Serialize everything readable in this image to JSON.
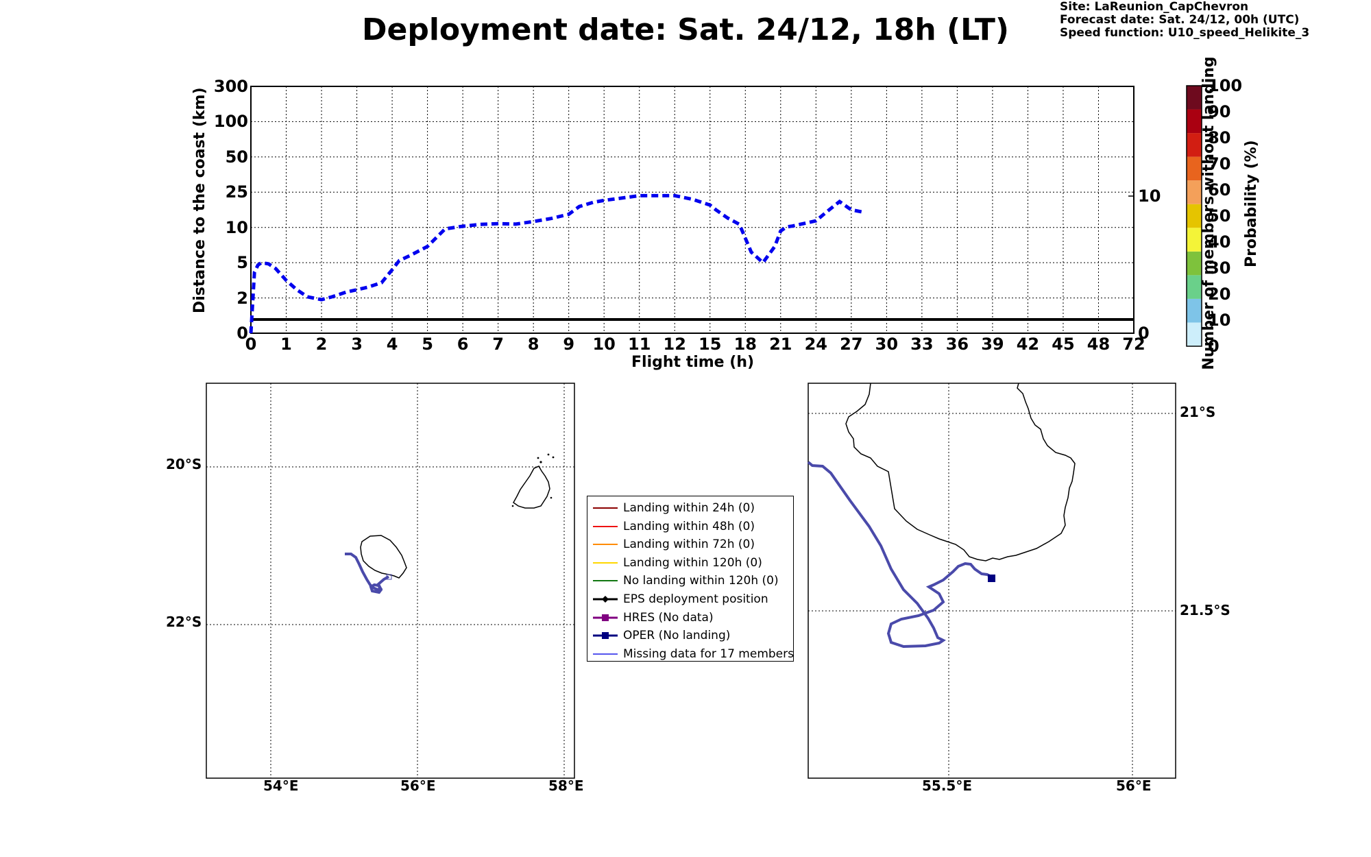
{
  "title": "Deployment date: Sat. 24/12, 18h (LT)",
  "site_info": [
    "Site: LaReunion_CapChevron",
    "Forecast date: Sat. 24/12, 00h (UTC)",
    "Speed function: U10_speed_Helikite_3"
  ],
  "chart_data": [
    {
      "type": "line",
      "title": "",
      "xlabel": "Flight time (h)",
      "ylabel": "Distance to the coast (km)",
      "ylabel_right": "Number of members without landing",
      "x_ticks": [
        "0",
        "1",
        "2",
        "3",
        "4",
        "5",
        "6",
        "7",
        "8",
        "9",
        "10",
        "11",
        "12",
        "15",
        "18",
        "21",
        "24",
        "27",
        "30",
        "33",
        "36",
        "39",
        "42",
        "45",
        "48",
        "72"
      ],
      "y_ticks": [
        "0",
        "2",
        "5",
        "10",
        "25",
        "50",
        "100",
        "300"
      ],
      "y_right_ticks": [
        "0",
        "10"
      ],
      "grid": true,
      "series": [
        {
          "name": "",
          "style": "dashed",
          "color": "#0000ee",
          "x": [
            0,
            0.1,
            0.2,
            0.3,
            0.5,
            0.7,
            1,
            1.3,
            1.6,
            2,
            2.3,
            2.7,
            3,
            3.3,
            3.7,
            4,
            4.2,
            4.5,
            5,
            5.5,
            6,
            6.5,
            7,
            7.5,
            8,
            8.5,
            9,
            9.3,
            9.7,
            10,
            10.5,
            11,
            11.5,
            12,
            13.5,
            15,
            15.5,
            16.5,
            17.5,
            18.5,
            19.5,
            20.5,
            21,
            21.5,
            22,
            23,
            24,
            25,
            26,
            27,
            28
          ],
          "y": [
            0,
            4.2,
            4.8,
            5.0,
            4.9,
            4.5,
            3.5,
            2.7,
            2.1,
            1.9,
            2.1,
            2.5,
            2.7,
            2.9,
            3.3,
            4.4,
            5.3,
            6.0,
            7.3,
            9.8,
            10.5,
            11.3,
            11.6,
            11.4,
            12.5,
            13.8,
            15.6,
            18.9,
            20.7,
            21.5,
            22.5,
            23.5,
            23.5,
            23.5,
            22,
            19.5,
            17.5,
            14,
            11.3,
            6.5,
            5.0,
            7.3,
            9.5,
            10.2,
            10.6,
            11.7,
            12.8,
            17,
            21,
            17.5,
            16.5
          ]
        },
        {
          "name": "",
          "style": "solid",
          "color": "#000000",
          "x": [
            0,
            72
          ],
          "y_right": [
            1,
            1
          ]
        }
      ]
    },
    {
      "type": "colorbar",
      "label": "Probability (%)",
      "ticks": [
        "0",
        "10",
        "20",
        "30",
        "40",
        "50",
        "60",
        "70",
        "80",
        "90",
        "100"
      ],
      "colors": [
        "#cdeefb",
        "#7ec4e8",
        "#6ad08a",
        "#7ec23c",
        "#f4f438",
        "#e5c400",
        "#f4a05a",
        "#e8641e",
        "#d21e12",
        "#aa0011",
        "#6e0a1e"
      ]
    }
  ],
  "legend": [
    {
      "label": "Landing within 24h (0)",
      "color": "#8b0000",
      "marker": "none"
    },
    {
      "label": "Landing within 48h (0)",
      "color": "#ee1111",
      "marker": "none"
    },
    {
      "label": "Landing within 72h (0)",
      "color": "#ff8c00",
      "marker": "none"
    },
    {
      "label": "Landing within 120h (0)",
      "color": "#ffd700",
      "marker": "none"
    },
    {
      "label": "No landing within 120h (0)",
      "color": "#117711",
      "marker": "none"
    },
    {
      "label": "EPS deployment position",
      "color": "#000000",
      "marker": "diamond"
    },
    {
      "label": "HRES (No data)",
      "color": "#800080",
      "marker": "square"
    },
    {
      "label": "OPER (No landing)",
      "color": "#000080",
      "marker": "square"
    },
    {
      "label": "Missing data for 17 members",
      "color": "#5555ee",
      "marker": "none"
    }
  ],
  "map_left": {
    "lon_ticks": [
      "54°E",
      "56°E",
      "58°E"
    ],
    "lat_ticks": [
      "20°S",
      "22°S"
    ]
  },
  "map_right": {
    "lon_ticks": [
      "55.5°E",
      "56°E"
    ],
    "lat_ticks": [
      "21°S",
      "21.5°S"
    ]
  },
  "colors": {
    "trajectory": "#4a4aaa",
    "flight_line": "#0000ee",
    "oper_marker": "#000080"
  }
}
